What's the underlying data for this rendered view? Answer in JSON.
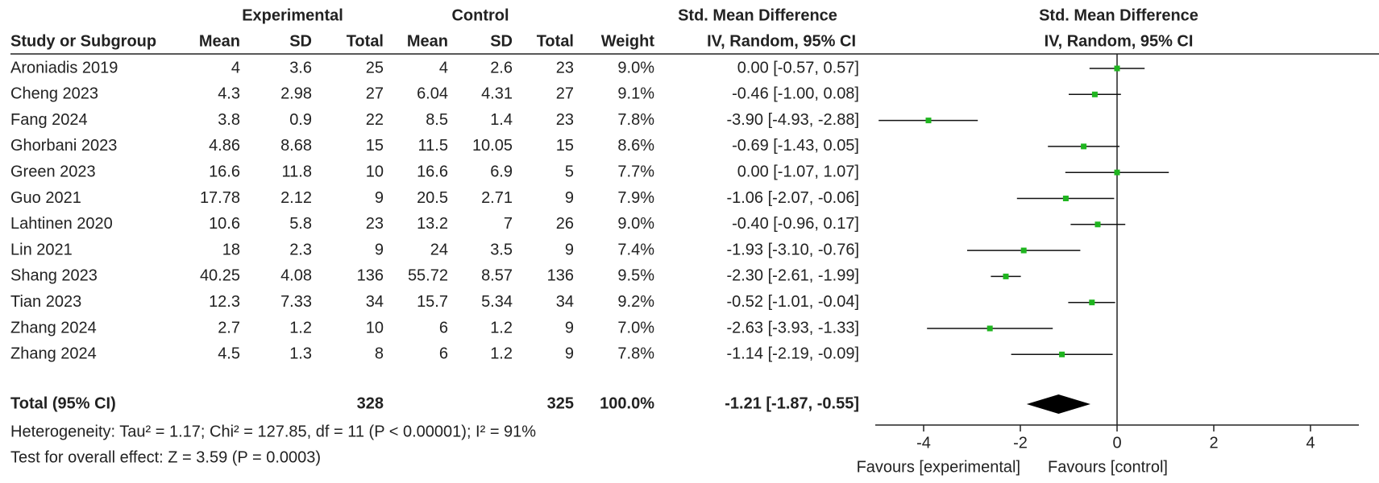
{
  "chart_data": {
    "type": "forest",
    "group_headers": {
      "experimental": "Experimental",
      "control": "Control",
      "table_effect": "Std. Mean Difference",
      "plot_effect": "Std. Mean Difference"
    },
    "column_headers": {
      "study": "Study or Subgroup",
      "exp_mean": "Mean",
      "exp_sd": "SD",
      "exp_total": "Total",
      "ctrl_mean": "Mean",
      "ctrl_sd": "SD",
      "ctrl_total": "Total",
      "weight": "Weight",
      "ci_label": "IV, Random, 95% CI",
      "plot_method": "IV, Random, 95% CI"
    },
    "rows": [
      {
        "study": "Aroniadis 2019",
        "exp_mean": 4,
        "exp_sd": 3.6,
        "exp_total": 25,
        "ctrl_mean": 4,
        "ctrl_sd": 2.6,
        "ctrl_total": 23,
        "weight": "9.0%",
        "ci_label": "0.00 [-0.57, 0.57]",
        "smd": 0,
        "ci": [
          -0.57,
          0.57
        ]
      },
      {
        "study": "Cheng 2023",
        "exp_mean": 4.3,
        "exp_sd": 2.98,
        "exp_total": 27,
        "ctrl_mean": 6.04,
        "ctrl_sd": 4.31,
        "ctrl_total": 27,
        "weight": "9.1%",
        "ci_label": "-0.46 [-1.00, 0.08]",
        "smd": -0.46,
        "ci": [
          -1.0,
          0.08
        ]
      },
      {
        "study": "Fang  2024",
        "exp_mean": 3.8,
        "exp_sd": 0.9,
        "exp_total": 22,
        "ctrl_mean": 8.5,
        "ctrl_sd": 1.4,
        "ctrl_total": 23,
        "weight": "7.8%",
        "ci_label": "-3.90 [-4.93, -2.88]",
        "smd": -3.9,
        "ci": [
          -4.93,
          -2.88
        ]
      },
      {
        "study": "Ghorbani 2023",
        "exp_mean": 4.86,
        "exp_sd": 8.68,
        "exp_total": 15,
        "ctrl_mean": 11.5,
        "ctrl_sd": 10.05,
        "ctrl_total": 15,
        "weight": "8.6%",
        "ci_label": "-0.69 [-1.43, 0.05]",
        "smd": -0.69,
        "ci": [
          -1.43,
          0.05
        ]
      },
      {
        "study": "Green 2023",
        "exp_mean": 16.6,
        "exp_sd": 11.8,
        "exp_total": 10,
        "ctrl_mean": 16.6,
        "ctrl_sd": 6.9,
        "ctrl_total": 5,
        "weight": "7.7%",
        "ci_label": "0.00 [-1.07, 1.07]",
        "smd": 0,
        "ci": [
          -1.07,
          1.07
        ]
      },
      {
        "study": "Guo 2021",
        "exp_mean": 17.78,
        "exp_sd": 2.12,
        "exp_total": 9,
        "ctrl_mean": 20.5,
        "ctrl_sd": 2.71,
        "ctrl_total": 9,
        "weight": "7.9%",
        "ci_label": "-1.06 [-2.07, -0.06]",
        "smd": -1.06,
        "ci": [
          -2.07,
          -0.06
        ]
      },
      {
        "study": "Lahtinen  2020",
        "exp_mean": 10.6,
        "exp_sd": 5.8,
        "exp_total": 23,
        "ctrl_mean": 13.2,
        "ctrl_sd": 7,
        "ctrl_total": 26,
        "weight": "9.0%",
        "ci_label": "-0.40 [-0.96, 0.17]",
        "smd": -0.4,
        "ci": [
          -0.96,
          0.17
        ]
      },
      {
        "study": "Lin 2021",
        "exp_mean": 18,
        "exp_sd": 2.3,
        "exp_total": 9,
        "ctrl_mean": 24,
        "ctrl_sd": 3.5,
        "ctrl_total": 9,
        "weight": "7.4%",
        "ci_label": "-1.93 [-3.10, -0.76]",
        "smd": -1.93,
        "ci": [
          -3.1,
          -0.76
        ]
      },
      {
        "study": "Shang 2023",
        "exp_mean": 40.25,
        "exp_sd": 4.08,
        "exp_total": 136,
        "ctrl_mean": 55.72,
        "ctrl_sd": 8.57,
        "ctrl_total": 136,
        "weight": "9.5%",
        "ci_label": "-2.30 [-2.61, -1.99]",
        "smd": -2.3,
        "ci": [
          -2.61,
          -1.99
        ]
      },
      {
        "study": "Tian 2023",
        "exp_mean": 12.3,
        "exp_sd": 7.33,
        "exp_total": 34,
        "ctrl_mean": 15.7,
        "ctrl_sd": 5.34,
        "ctrl_total": 34,
        "weight": "9.2%",
        "ci_label": "-0.52 [-1.01, -0.04]",
        "smd": -0.52,
        "ci": [
          -1.01,
          -0.04
        ]
      },
      {
        "study": "Zhang 2024",
        "exp_mean": 2.7,
        "exp_sd": 1.2,
        "exp_total": 10,
        "ctrl_mean": 6,
        "ctrl_sd": 1.2,
        "ctrl_total": 9,
        "weight": "7.0%",
        "ci_label": "-2.63 [-3.93, -1.33]",
        "smd": -2.63,
        "ci": [
          -3.93,
          -1.33
        ]
      },
      {
        "study": "Zhang 2024",
        "exp_mean": 4.5,
        "exp_sd": 1.3,
        "exp_total": 8,
        "ctrl_mean": 6,
        "ctrl_sd": 1.2,
        "ctrl_total": 9,
        "weight": "7.8%",
        "ci_label": "-1.14 [-2.19, -0.09]",
        "smd": -1.14,
        "ci": [
          -2.19,
          -0.09
        ]
      }
    ],
    "total": {
      "study": "Total (95% CI)",
      "exp_total": 328,
      "ctrl_total": 325,
      "weight": "100.0%",
      "ci_label": "-1.21 [-1.87, -0.55]",
      "smd": -1.21,
      "ci": [
        -1.87,
        -0.55
      ]
    },
    "heterogeneity": "Heterogeneity: Tau² = 1.17; Chi² = 127.85, df = 11 (P < 0.00001); I² = 91%",
    "overall_effect": "Test for overall effect: Z = 3.59 (P = 0.0003)",
    "xlim": [
      -5,
      5
    ],
    "xticks": [
      -4,
      -2,
      0,
      2,
      4
    ],
    "favours_left": "Favours [experimental]",
    "favours_right": "Favours [control]",
    "marker_color": "#1fb51f"
  }
}
